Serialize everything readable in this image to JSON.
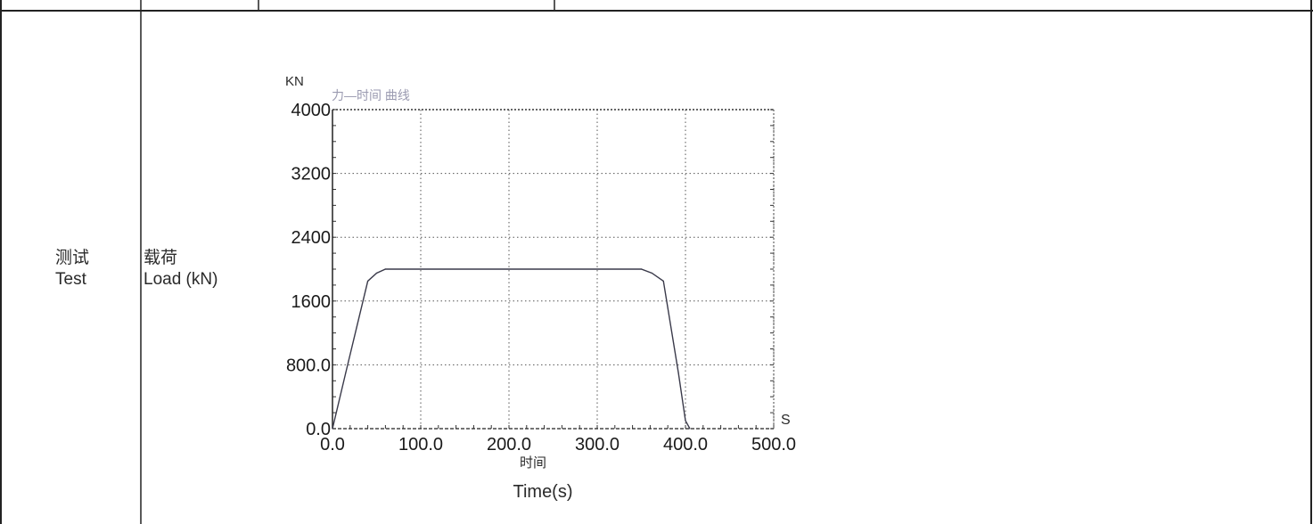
{
  "row": {
    "section_label_cn": "测试",
    "section_label_en": "Test",
    "quantity_label_cn": "载荷",
    "quantity_label_en": "Load (kN)"
  },
  "chart_data": {
    "type": "line",
    "title": "力—时间 曲线",
    "y_unit": "KN",
    "x_unit": "S",
    "xlabel_cn": "时间",
    "xlabel_en": "Time(s)",
    "xlim": [
      0.0,
      500.0
    ],
    "ylim": [
      0.0,
      4000.0
    ],
    "x_ticks": [
      "0.0",
      "100.0",
      "200.0",
      "300.0",
      "400.0",
      "500.0"
    ],
    "y_ticks": [
      "0.0",
      "800.0",
      "1600",
      "2400",
      "3200",
      "4000"
    ],
    "grid": true,
    "series": [
      {
        "x": [
          0,
          15,
          40,
          50,
          60,
          350,
          362,
          375,
          392,
          400,
          405
        ],
        "y": [
          0,
          700,
          1850,
          1950,
          2000,
          2000,
          1950,
          1850,
          700,
          100,
          0
        ]
      }
    ],
    "colors": {
      "line": "#3a3a4a",
      "grid": "#555555",
      "title": "#9a9ab0"
    }
  }
}
